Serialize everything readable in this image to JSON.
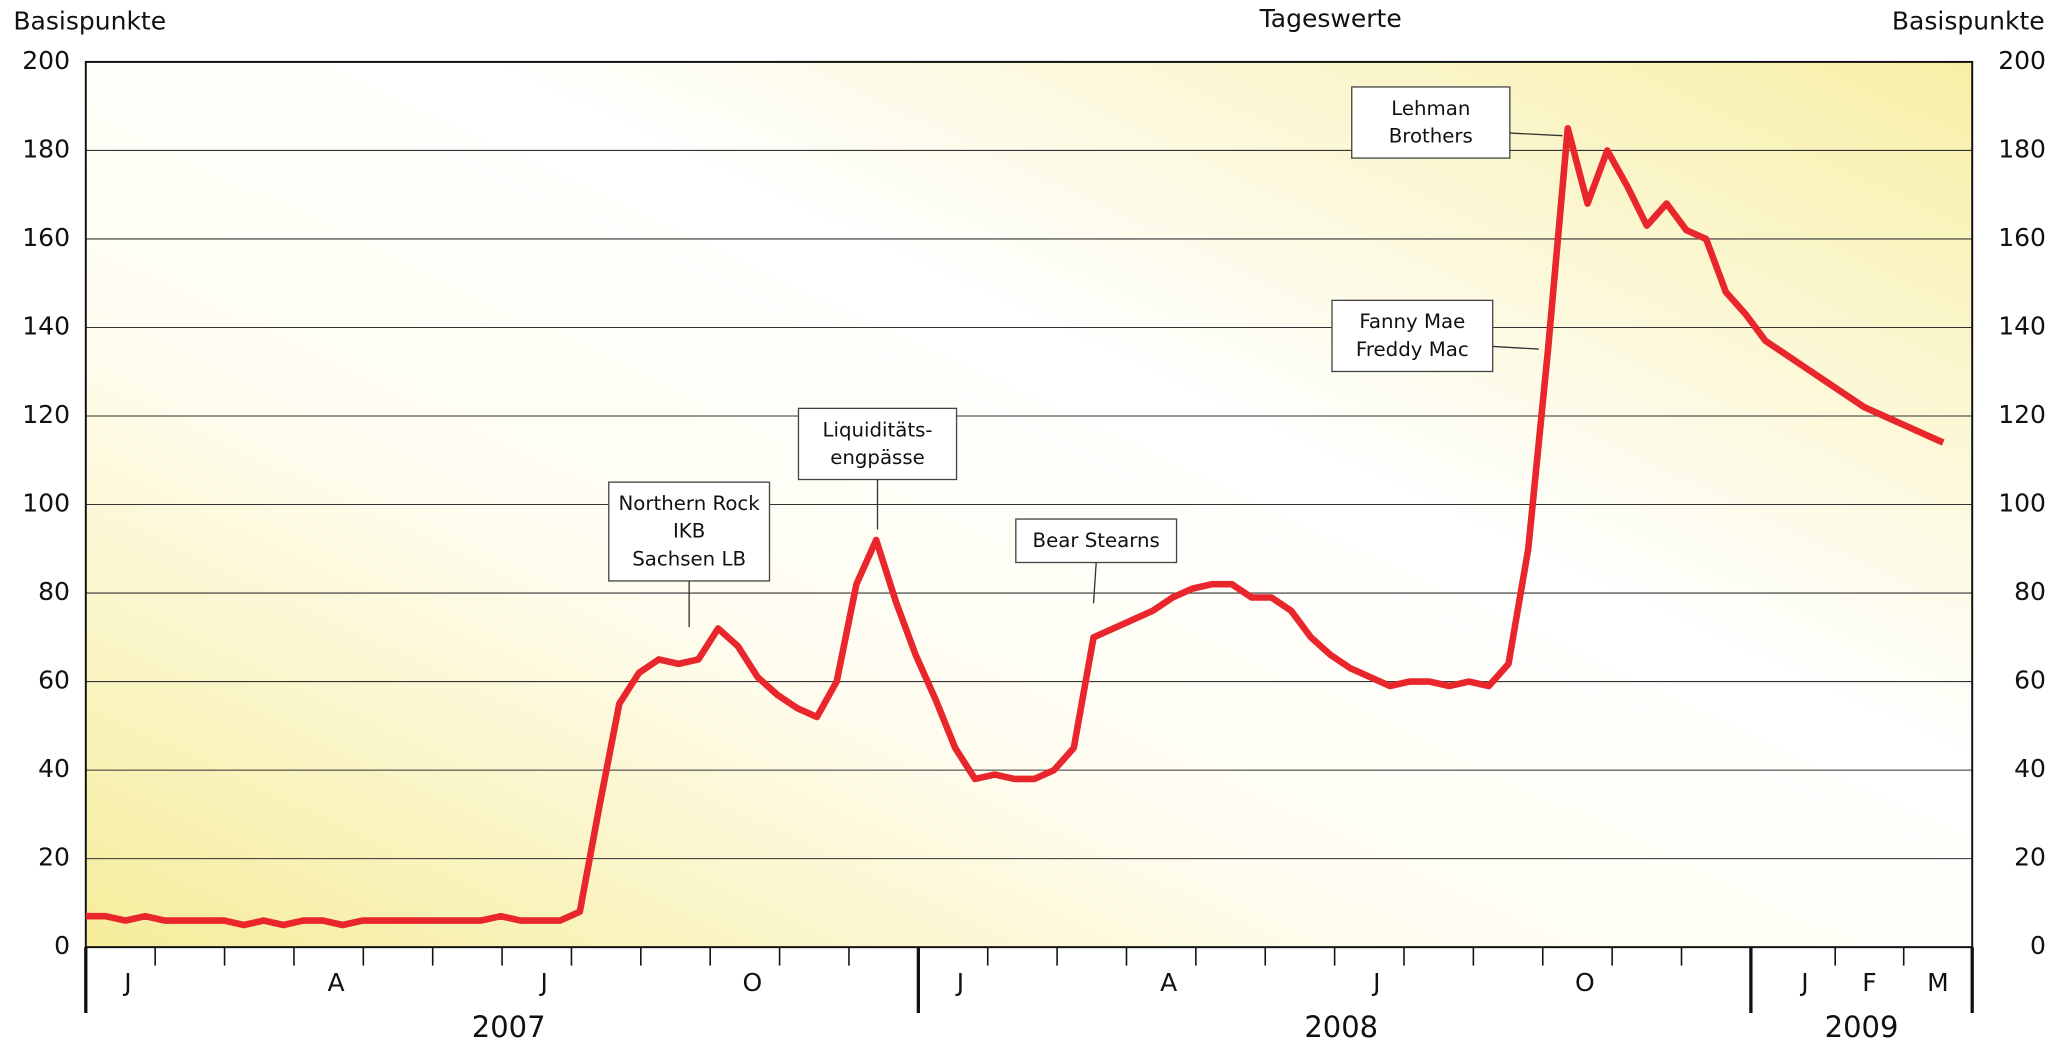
{
  "chart_data": {
    "type": "line",
    "subtitle": "Tageswerte",
    "y_label": "Basispunkte",
    "y2_label": "Basispunkte",
    "ylim": [
      0,
      200
    ],
    "yticks": [
      0,
      20,
      40,
      60,
      80,
      100,
      120,
      140,
      160,
      180,
      200
    ],
    "y2lim": [
      0,
      200
    ],
    "y2ticks": [
      0,
      20,
      40,
      60,
      80,
      100,
      120,
      140,
      160,
      180,
      200
    ],
    "grid": true,
    "quarter_labels": [
      "J",
      "A",
      "J",
      "O",
      "J",
      "A",
      "J",
      "O",
      "J",
      "F",
      "M"
    ],
    "years": [
      "2007",
      "2008",
      "2009"
    ],
    "series": [
      {
        "name": "Tageswerte",
        "color": "#e8262b",
        "values": [
          7,
          7,
          6,
          7,
          6,
          6,
          6,
          6,
          5,
          6,
          5,
          6,
          6,
          5,
          6,
          6,
          6,
          6,
          6,
          6,
          6,
          7,
          6,
          6,
          6,
          8,
          32,
          55,
          62,
          65,
          64,
          65,
          72,
          68,
          61,
          57,
          54,
          52,
          60,
          82,
          92,
          78,
          66,
          56,
          45,
          38,
          39,
          38,
          38,
          40,
          45,
          70,
          72,
          74,
          76,
          79,
          81,
          82,
          82,
          79,
          79,
          76,
          70,
          66,
          63,
          61,
          59,
          60,
          60,
          59,
          60,
          59,
          64,
          90,
          135,
          185,
          168,
          180,
          172,
          163,
          168,
          162,
          160,
          148,
          143,
          137,
          134,
          131,
          128,
          125,
          122,
          120,
          118,
          116,
          114
        ]
      }
    ],
    "annotations": [
      {
        "lines": [
          "Northern Rock",
          "IKB",
          "Sachsen LB"
        ]
      },
      {
        "lines": [
          "Liquiditäts-",
          "engpässe"
        ]
      },
      {
        "lines": [
          "Bear Stearns"
        ]
      },
      {
        "lines": [
          "Fanny Mae",
          "Freddy Mac"
        ]
      },
      {
        "lines": [
          "Lehman",
          "Brothers"
        ]
      }
    ]
  }
}
